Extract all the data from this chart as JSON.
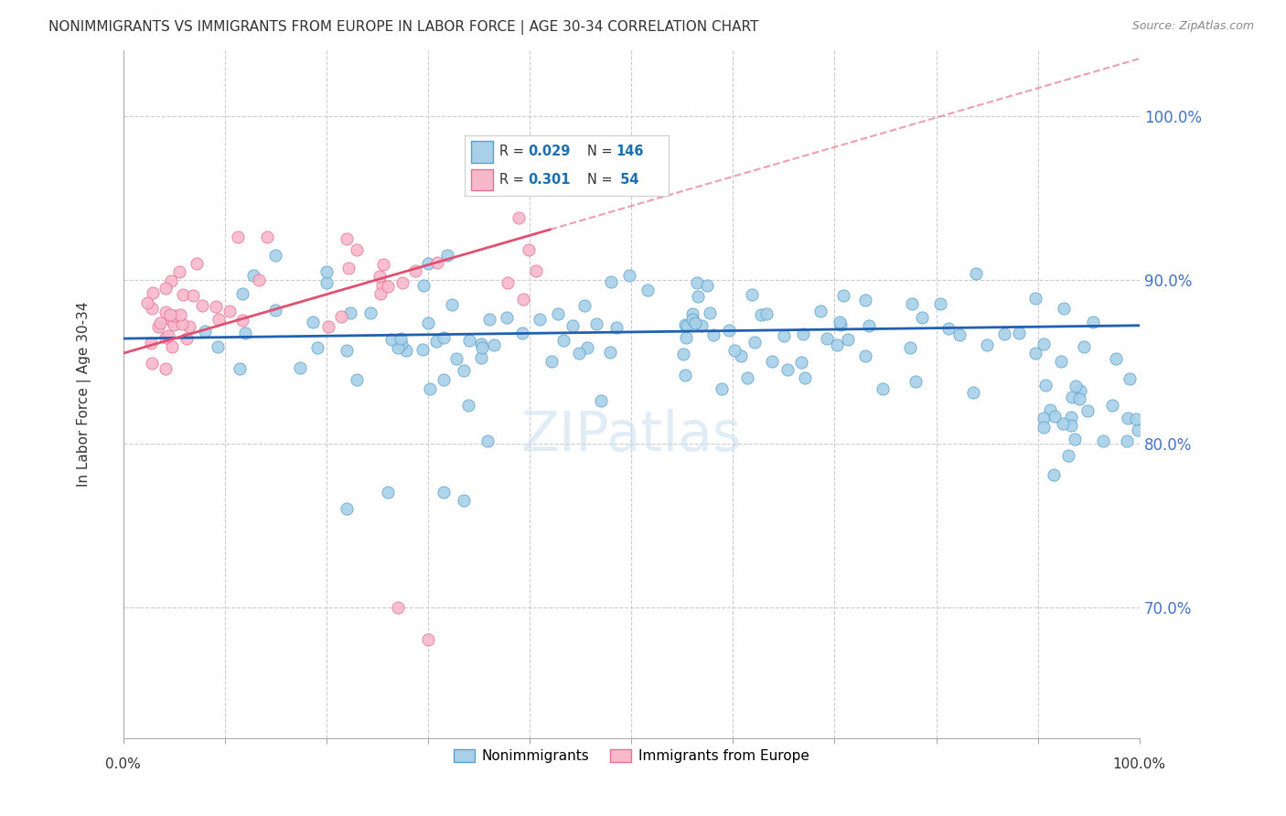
{
  "title": "NONIMMIGRANTS VS IMMIGRANTS FROM EUROPE IN LABOR FORCE | AGE 30-34 CORRELATION CHART",
  "source": "Source: ZipAtlas.com",
  "ylabel": "In Labor Force | Age 30-34",
  "ytick_values": [
    0.7,
    0.8,
    0.9,
    1.0
  ],
  "ytick_labels": [
    "70.0%",
    "80.0%",
    "90.0%",
    "100.0%"
  ],
  "xmin": 0.0,
  "xmax": 1.0,
  "ymin": 0.62,
  "ymax": 1.04,
  "blue_R": 0.029,
  "blue_N": 146,
  "pink_R": 0.301,
  "pink_N": 54,
  "blue_marker_face": "#a8d0e8",
  "blue_marker_edge": "#5aa0cc",
  "pink_marker_face": "#f8b8cc",
  "pink_marker_edge": "#e87090",
  "blue_line_color": "#2060b0",
  "pink_line_color": "#e05070",
  "legend_R_color": "#1a6faf",
  "watermark": "ZIPatlas",
  "title_color": "#333333",
  "source_color": "#888888",
  "grid_color": "#cccccc",
  "right_tick_color": "#4472c4"
}
